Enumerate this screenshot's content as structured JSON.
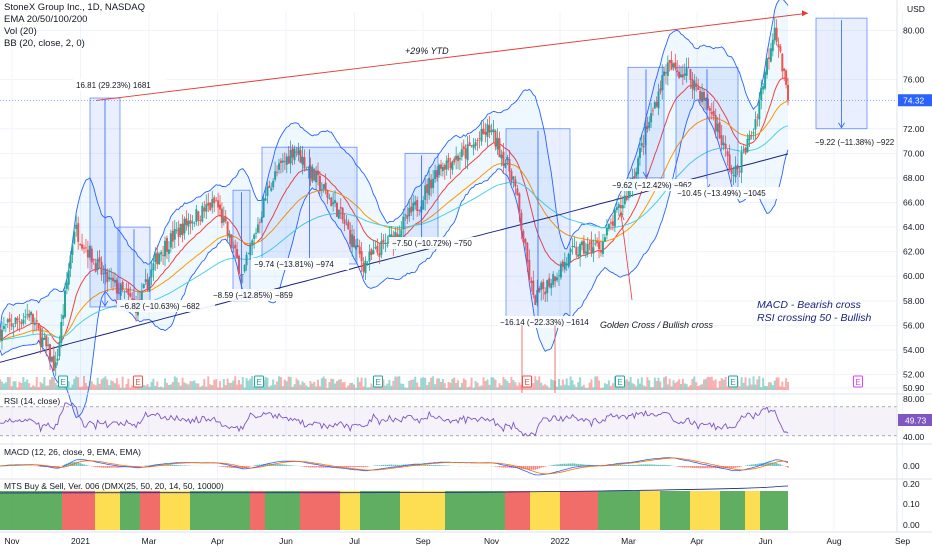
{
  "legend": {
    "title": "StoneX Group Inc., 1D, NASDAQ",
    "ema": "EMA 20/50/100/200",
    "vol": "Vol (20)",
    "bb": "BB (20, close, 2, 0)"
  },
  "price_axis": {
    "currency": "USD",
    "ticks": [
      "80.00",
      "76.00",
      "72.00",
      "70.00",
      "68.00",
      "66.00",
      "64.00",
      "62.00",
      "60.00",
      "58.00",
      "56.00",
      "54.00",
      "52.00",
      "50.90"
    ],
    "current_price": "74.32",
    "current_color": "#2962ff"
  },
  "time_axis": {
    "labels": [
      "Nov",
      "2021",
      "Mar",
      "Apr",
      "Jun",
      "Jul",
      "Sep",
      "Nov",
      "2022",
      "Mar",
      "Apr",
      "Jun",
      "Aug",
      "Sep"
    ]
  },
  "annotations": {
    "ytd": "+29% YTD",
    "box_labels": [
      "16.81 (29.23%) 1681",
      "−6.82 (−10.63%) −682",
      "−8.59 (−12.85%) −859",
      "−9.74 (−13.81%) −974",
      "−7.50 (−10.72%) −750",
      "−16.14 (−22.33%) −1614",
      "−9.62 (−12.42%) −962",
      "−10.45 (−13.49%) −1045",
      "−9.22 (−11.38%) −922"
    ],
    "golden_cross": "Golden Cross / Bullish cross",
    "macd_note": "MACD - Bearish cross",
    "rsi_note": "RSI crossing 50 - Bullish",
    "earnings_marker": "E"
  },
  "rsi_panel": {
    "title": "RSI (14, close)",
    "ticks": [
      "80.00",
      "40.00"
    ],
    "current": "49.73",
    "line_color": "#7e57c2"
  },
  "macd_panel": {
    "title": "MACD (12, 26, close, 9, EMA, EMA)",
    "ticks": [
      "0.00"
    ]
  },
  "mts_panel": {
    "title": "MTS Buy & Sell, Ver. 006 (DMX(25, 50, 20, 14, 50, 10000)",
    "ticks": [
      "0.20",
      "0.10",
      "0.00"
    ]
  },
  "chart_data": {
    "type": "line",
    "title": "StoneX Group Inc., 1D, NASDAQ",
    "xlabel": "",
    "ylabel": "USD",
    "x": [
      "2020-10-29",
      "2020-11-20",
      "2020-12-10",
      "2020-12-24",
      "2021-01-15",
      "2021-02-10",
      "2021-02-26",
      "2021-03-20",
      "2021-04-10",
      "2021-04-30",
      "2021-05-20",
      "2021-06-08",
      "2021-06-20",
      "2021-07-10",
      "2021-07-30",
      "2021-08-20",
      "2021-09-10",
      "2021-09-25",
      "2021-10-15",
      "2021-11-02",
      "2021-11-20",
      "2021-12-05",
      "2021-12-20",
      "2022-01-05",
      "2022-01-25",
      "2022-02-15",
      "2022-03-01",
      "2022-03-15",
      "2022-04-01",
      "2022-04-20",
      "2022-05-05",
      "2022-05-20",
      "2022-06-05",
      "2022-06-15"
    ],
    "ylim": [
      50.5,
      81.5
    ],
    "series": [
      {
        "values": [
          55.5,
          57.0,
          52.5,
          64.0,
          60.0,
          57.5,
          62.0,
          64.5,
          66.0,
          60.0,
          67.5,
          70.5,
          68.5,
          65.5,
          61.0,
          63.0,
          66.0,
          69.0,
          70.0,
          72.0,
          68.0,
          58.0,
          60.0,
          62.0,
          62.5,
          67.0,
          72.0,
          77.0,
          76.5,
          73.0,
          68.0,
          72.0,
          80.5,
          74.3
        ]
      }
    ]
  }
}
